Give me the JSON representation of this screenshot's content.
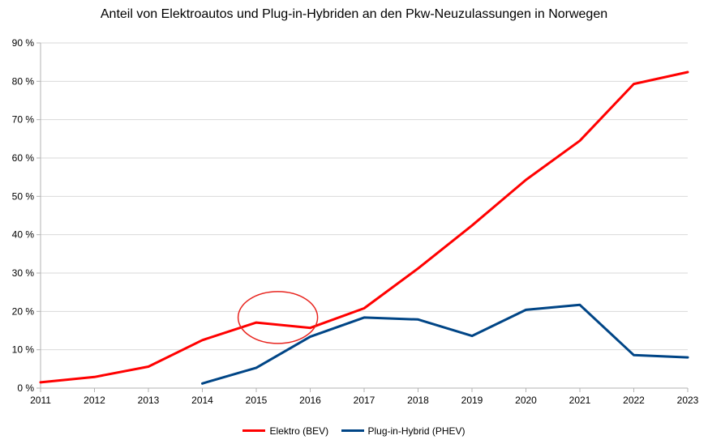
{
  "chart_data": {
    "type": "line",
    "title": "Anteil von Elektroautos und Plug-in-Hybriden an den Pkw-Neuzulassungen in Norwegen",
    "xlabel": "",
    "ylabel": "",
    "x": [
      2011,
      2012,
      2013,
      2014,
      2015,
      2016,
      2017,
      2018,
      2019,
      2020,
      2021,
      2022,
      2023
    ],
    "x_tick_labels": [
      "2011",
      "2012",
      "2013",
      "2014",
      "2015",
      "2016",
      "2017",
      "2018",
      "2019",
      "2020",
      "2021",
      "2022",
      "2023"
    ],
    "y_tick_labels": [
      "0 %",
      "10 %",
      "20 %",
      "30 %",
      "40 %",
      "50 %",
      "60 %",
      "70 %",
      "80 %",
      "90 %"
    ],
    "ylim": [
      0,
      90
    ],
    "xlim": [
      2011,
      2023
    ],
    "grid": true,
    "legend_position": "bottom",
    "series": [
      {
        "name": "Elektro (BEV)",
        "color": "#ff0000",
        "values": [
          1.5,
          2.9,
          5.6,
          12.5,
          17.1,
          15.7,
          20.8,
          31.2,
          42.4,
          54.3,
          64.5,
          79.3,
          82.4
        ]
      },
      {
        "name": "Plug-in-Hybrid (PHEV)",
        "color": "#004586",
        "values": [
          null,
          null,
          null,
          1.2,
          5.3,
          13.4,
          18.4,
          17.9,
          13.6,
          20.4,
          21.7,
          8.6,
          8.0
        ]
      }
    ],
    "annotation": {
      "type": "ellipse",
      "color": "#e8251f",
      "x_center": 2015.4,
      "y_center": 18.4
    }
  }
}
